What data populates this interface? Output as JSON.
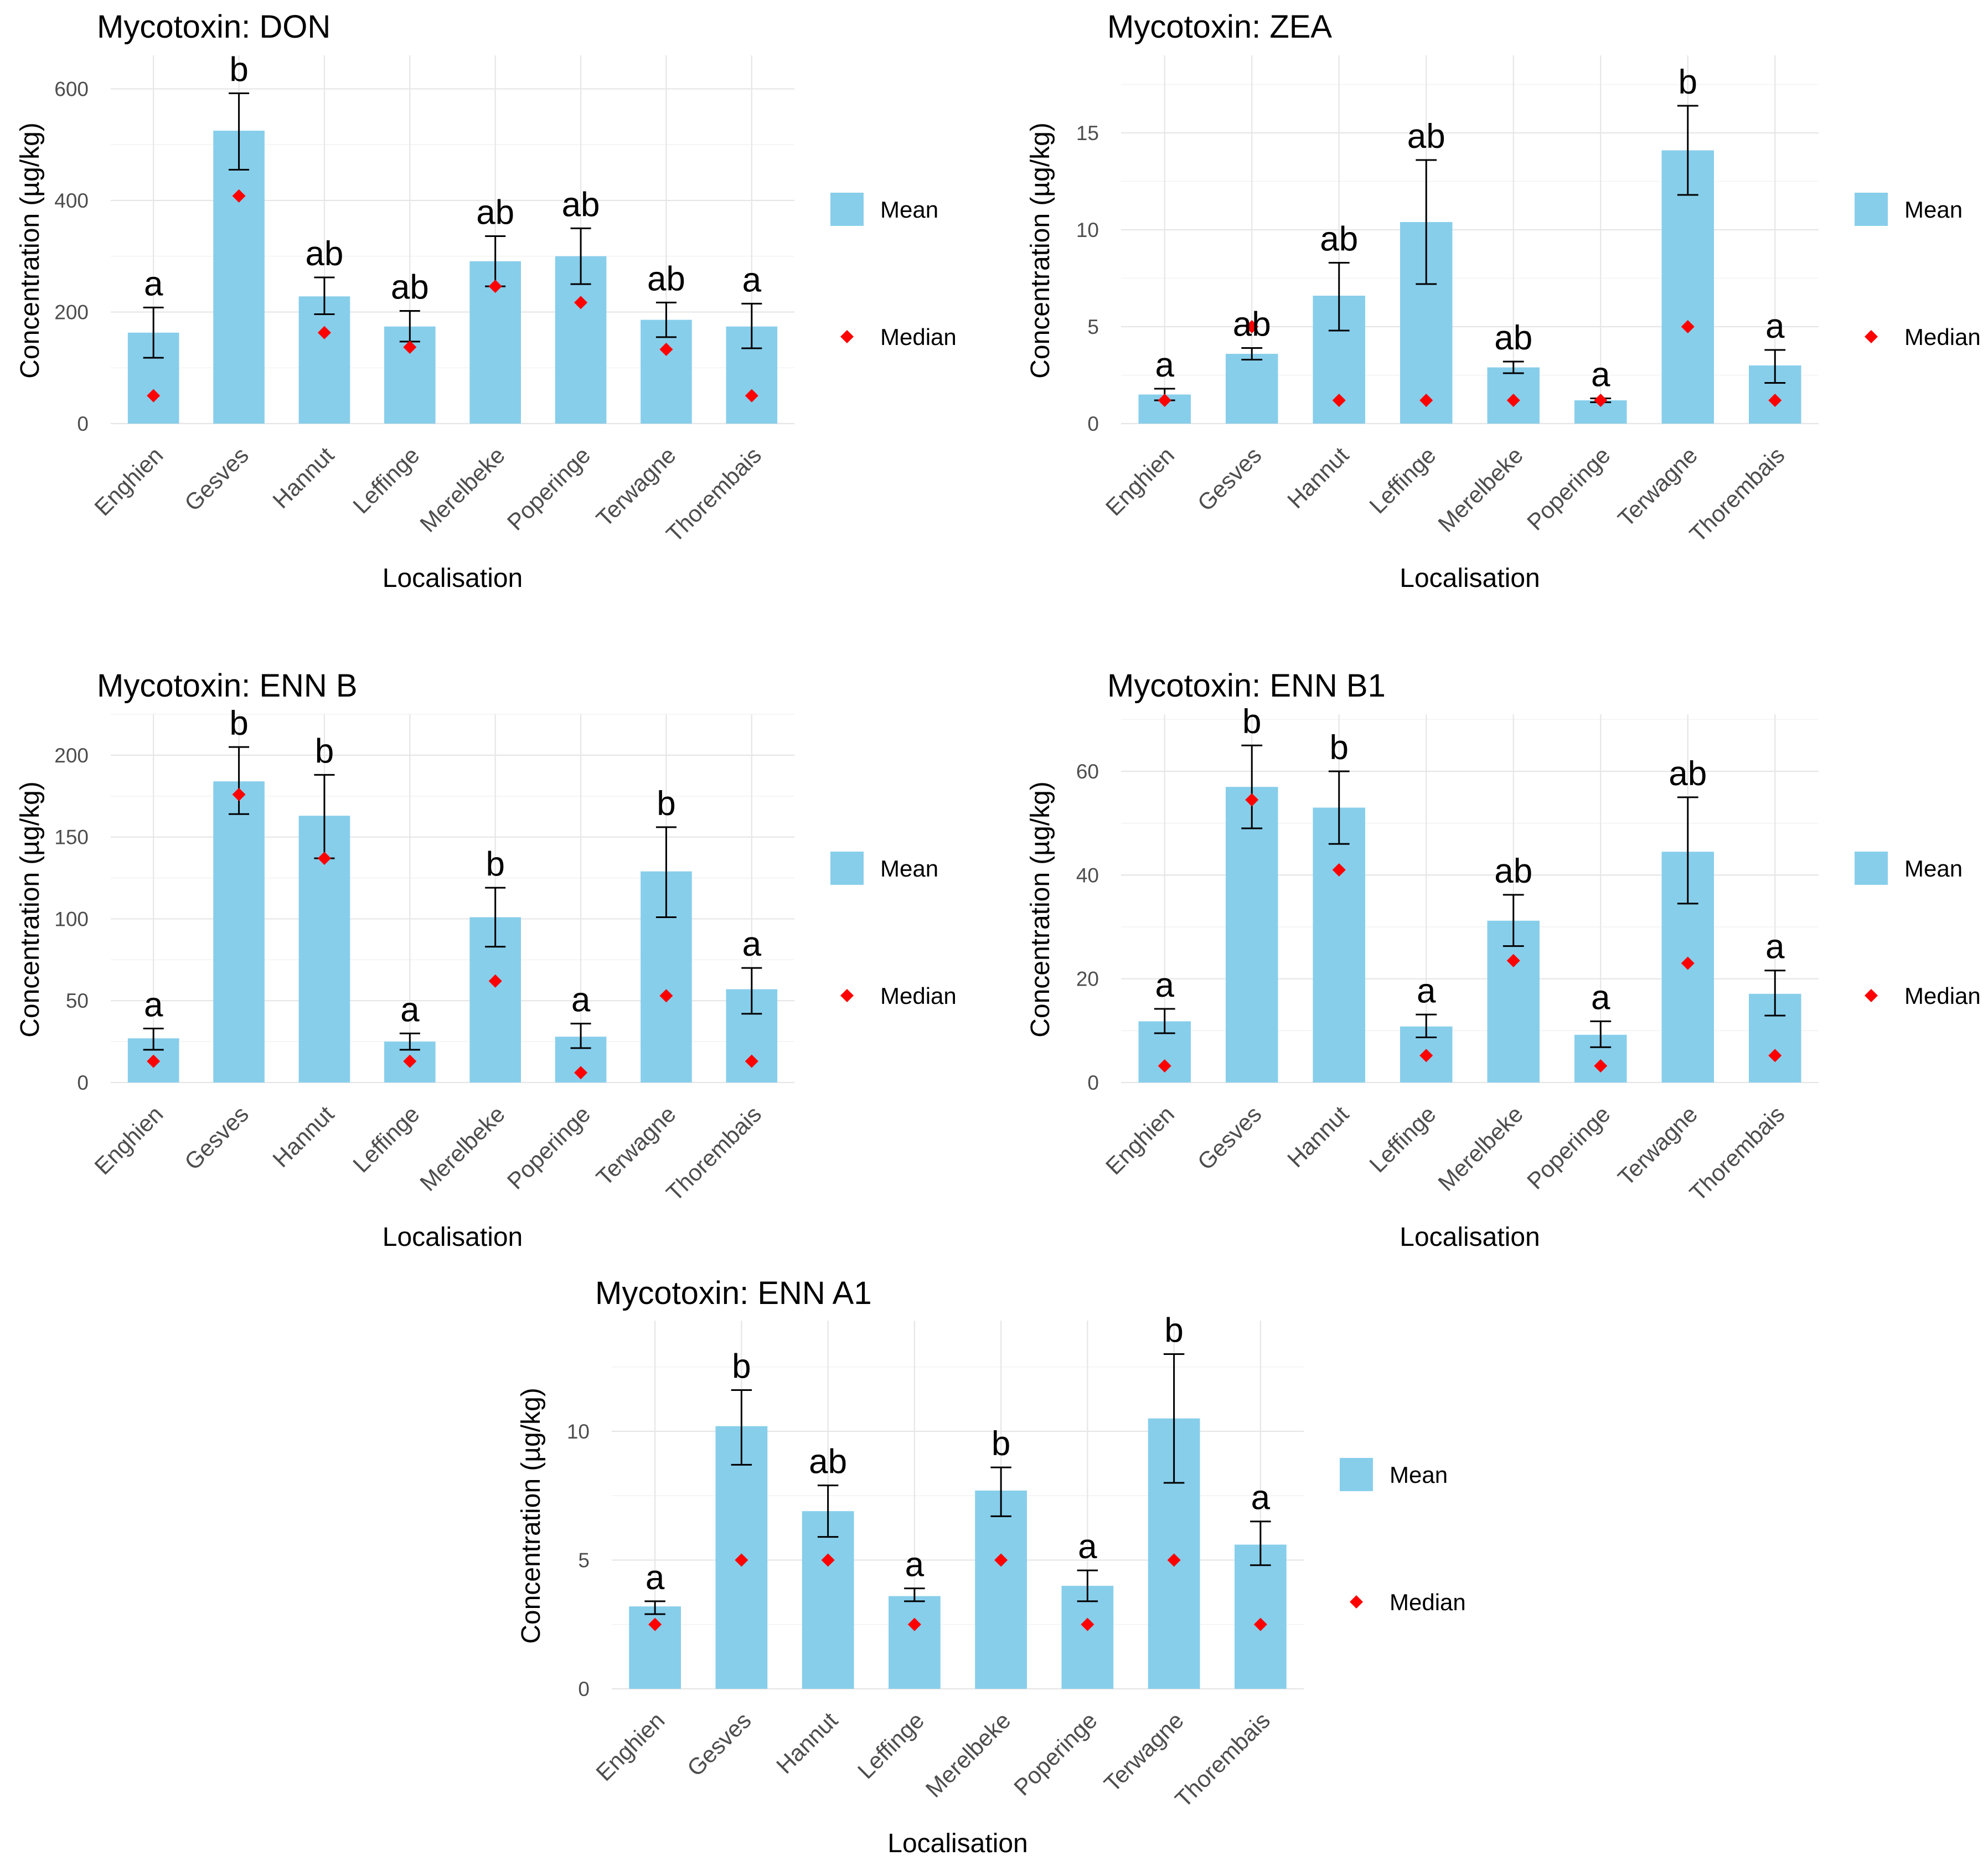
{
  "legend": {
    "mean_label": "Mean",
    "median_label": "Median",
    "mean_color": "#87ceeb",
    "median_color": "#ff0000"
  },
  "chart_data": [
    {
      "type": "bar",
      "title": "Mycotoxin: DON",
      "xlabel": "Localisation",
      "ylabel": "Concentration (µg/kg)",
      "ylim": [
        0,
        660
      ],
      "yticks": [
        0,
        200,
        400,
        600
      ],
      "categories": [
        "Enghien",
        "Gesves",
        "Hannut",
        "Leffinge",
        "Merelbeke",
        "Poperinge",
        "Terwagne",
        "Thorembais"
      ],
      "mean": [
        163,
        525,
        228,
        174,
        291,
        300,
        186,
        174
      ],
      "se_low": [
        118,
        455,
        196,
        147,
        246,
        250,
        155,
        135
      ],
      "se_high": [
        208,
        592,
        262,
        202,
        336,
        350,
        217,
        215
      ],
      "median": [
        50,
        408,
        163,
        137,
        246,
        217,
        133,
        50
      ],
      "letters": [
        "a",
        "b",
        "ab",
        "ab",
        "ab",
        "ab",
        "ab",
        "a"
      ]
    },
    {
      "type": "bar",
      "title": "Mycotoxin: ZEA",
      "xlabel": "Localisation",
      "ylabel": "Concentration (µg/kg)",
      "ylim": [
        0,
        19
      ],
      "yticks": [
        0,
        5,
        10,
        15
      ],
      "categories": [
        "Enghien",
        "Gesves",
        "Hannut",
        "Leffinge",
        "Merelbeke",
        "Poperinge",
        "Terwagne",
        "Thorembais"
      ],
      "mean": [
        1.5,
        3.6,
        6.6,
        10.4,
        2.9,
        1.2,
        14.1,
        3.0
      ],
      "se_low": [
        1.2,
        3.3,
        4.8,
        7.2,
        2.6,
        1.1,
        11.8,
        2.1
      ],
      "se_high": [
        1.8,
        3.9,
        8.3,
        13.6,
        3.2,
        1.3,
        16.4,
        3.8
      ],
      "median": [
        1.2,
        5.0,
        1.2,
        1.2,
        1.2,
        1.2,
        5.0,
        1.2
      ],
      "letters": [
        "a",
        "ab",
        "ab",
        "ab",
        "ab",
        "a",
        "b",
        "a"
      ]
    },
    {
      "type": "bar",
      "title": "Mycotoxin: ENN B",
      "xlabel": "Localisation",
      "ylabel": "Concentration (µg/kg)",
      "ylim": [
        0,
        225
      ],
      "yticks": [
        0,
        50,
        100,
        150,
        200
      ],
      "categories": [
        "Enghien",
        "Gesves",
        "Hannut",
        "Leffinge",
        "Merelbeke",
        "Poperinge",
        "Terwagne",
        "Thorembais"
      ],
      "mean": [
        27,
        184,
        163,
        25,
        101,
        28,
        129,
        57
      ],
      "se_low": [
        20,
        164,
        137,
        20,
        83,
        21,
        101,
        42
      ],
      "se_high": [
        33,
        205,
        188,
        30,
        119,
        36,
        156,
        70
      ],
      "median": [
        13,
        176,
        137,
        13,
        62,
        6,
        53,
        13
      ],
      "letters": [
        "a",
        "b",
        "b",
        "a",
        "b",
        "a",
        "b",
        "a"
      ]
    },
    {
      "type": "bar",
      "title": "Mycotoxin: ENN B1",
      "xlabel": "Localisation",
      "ylabel": "Concentration (µg/kg)",
      "ylim": [
        0,
        71
      ],
      "yticks": [
        0,
        20,
        40,
        60
      ],
      "categories": [
        "Enghien",
        "Gesves",
        "Hannut",
        "Leffinge",
        "Merelbeke",
        "Poperinge",
        "Terwagne",
        "Thorembais"
      ],
      "mean": [
        11.8,
        57,
        53,
        10.8,
        31.2,
        9.2,
        44.5,
        17.1
      ],
      "se_low": [
        9.5,
        49,
        46,
        8.7,
        26.3,
        6.8,
        34.5,
        12.9
      ],
      "se_high": [
        14.2,
        65,
        60,
        13.1,
        36.2,
        11.8,
        55,
        21.6
      ],
      "median": [
        3.2,
        54.5,
        41,
        5.2,
        23.5,
        3.2,
        23,
        5.2
      ],
      "letters": [
        "a",
        "b",
        "b",
        "a",
        "ab",
        "a",
        "ab",
        "a"
      ]
    },
    {
      "type": "bar",
      "title": "Mycotoxin: ENN A1",
      "xlabel": "Localisation",
      "ylabel": "Concentration (µg/kg)",
      "ylim": [
        0,
        14.3
      ],
      "yticks": [
        0,
        5,
        10
      ],
      "categories": [
        "Enghien",
        "Gesves",
        "Hannut",
        "Leffinge",
        "Merelbeke",
        "Poperinge",
        "Terwagne",
        "Thorembais"
      ],
      "mean": [
        3.2,
        10.2,
        6.9,
        3.6,
        7.7,
        4.0,
        10.5,
        5.6
      ],
      "se_low": [
        2.9,
        8.7,
        5.9,
        3.4,
        6.7,
        3.4,
        8.0,
        4.8
      ],
      "se_high": [
        3.4,
        11.6,
        7.9,
        3.9,
        8.6,
        4.6,
        13.0,
        6.5
      ],
      "median": [
        2.5,
        5.0,
        5.0,
        2.5,
        5.0,
        2.5,
        5.0,
        2.5
      ],
      "letters": [
        "a",
        "b",
        "ab",
        "a",
        "b",
        "a",
        "b",
        "a"
      ]
    }
  ]
}
